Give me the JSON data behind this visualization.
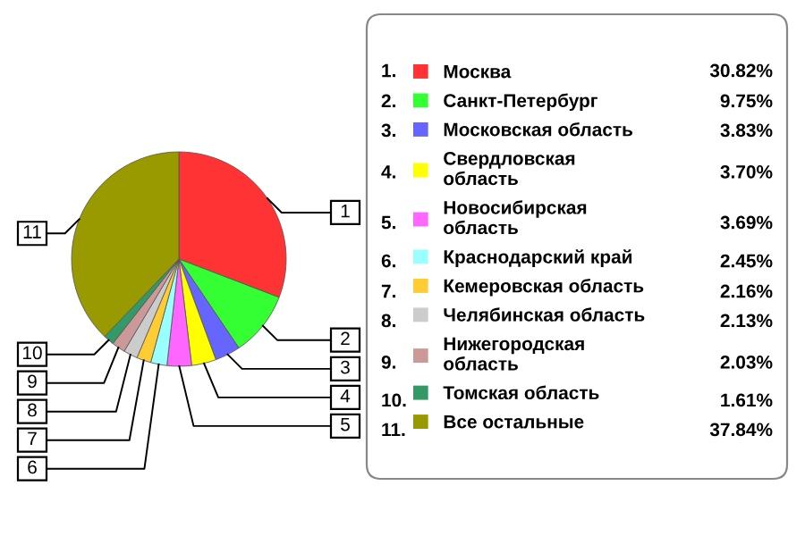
{
  "chart_data": {
    "type": "pie",
    "categories": [
      "Москва",
      "Санкт-Петербург",
      "Московская область",
      "Свердловская область",
      "Новосибирская область",
      "Краснодарский край",
      "Кемеровская область",
      "Челябинская область",
      "Нижегородская область",
      "Томская область",
      "Все остальные"
    ],
    "values": [
      30.82,
      9.75,
      3.83,
      3.7,
      3.69,
      2.45,
      2.16,
      2.13,
      2.03,
      1.61,
      37.84
    ],
    "value_labels": [
      "30.82%",
      "9.75%",
      "3.83%",
      "3.70%",
      "3.69%",
      "2.45%",
      "2.16%",
      "2.13%",
      "2.03%",
      "1.61%",
      "37.84%"
    ],
    "colors": [
      "#ff3333",
      "#33ff33",
      "#6666ff",
      "#ffff00",
      "#ff66ff",
      "#99ffff",
      "#ffcc33",
      "#cccccc",
      "#cc9999",
      "#339966",
      "#999900"
    ],
    "annotations": [
      "1",
      "2",
      "3",
      "4",
      "5",
      "6",
      "7",
      "8",
      "9",
      "10",
      "11",
      "1.",
      "2.",
      "3.",
      "4.",
      "5.",
      "6.",
      "7.",
      "8.",
      "9.",
      "10.",
      "11."
    ],
    "legend": "right"
  }
}
